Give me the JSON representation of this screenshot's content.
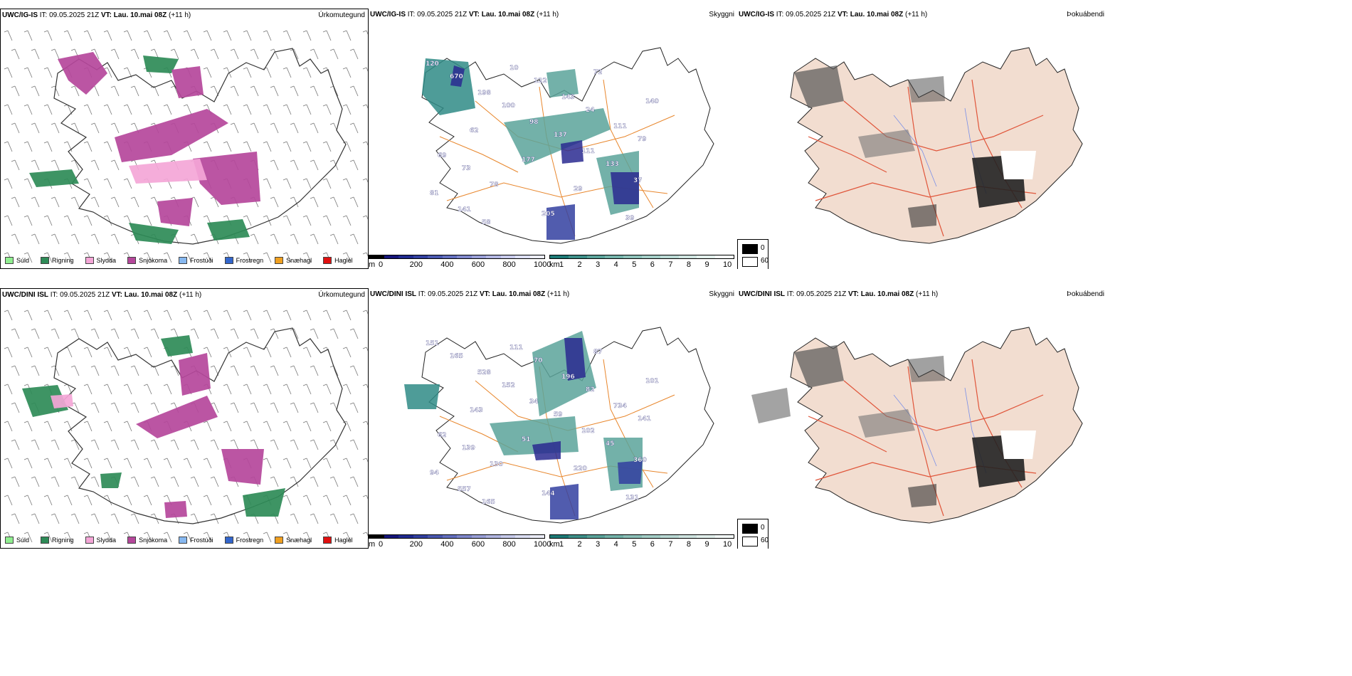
{
  "rows": [
    {
      "precip": {
        "header": {
          "model": "UWC/IG-IS",
          "it_label": "IT:",
          "it_value": "09.05.2025 21Z",
          "vt_label": "VT:",
          "vt_value": "Lau. 10.mai 08Z",
          "lead": "(+11 h)"
        },
        "title": "Úrkomutegund"
      },
      "cloud": {
        "header": {
          "model": "UWC/IG-IS",
          "it_label": "IT:",
          "it_value": "09.05.2025 21Z",
          "vt_label": "VT:",
          "vt_value": "Lau. 10.mai 08Z",
          "lead": "(+11 h)"
        },
        "title": "Skyggni",
        "labels": [
          "120",
          "198",
          "98",
          "111",
          "37",
          "141",
          "10",
          "143",
          "111",
          "69",
          "78",
          "205",
          "72",
          "140",
          "62",
          "177",
          "29",
          "39",
          "670",
          "100",
          "137",
          "133",
          "81",
          "58",
          "122",
          "24",
          "79",
          "73"
        ]
      },
      "fog": {
        "header": {
          "model": "UWC/IG-IS",
          "it_label": "IT:",
          "it_value": "09.05.2025 21Z",
          "vt_label": "VT:",
          "vt_value": "Lau. 10.mai 08Z",
          "lead": "(+11 h)"
        },
        "title": "Þokuábendi"
      }
    },
    {
      "precip": {
        "header": {
          "model": "UWC/DINI ISL",
          "it_label": "IT:",
          "it_value": "09.05.2025 21Z",
          "vt_label": "VT:",
          "vt_value": "Lau. 10.mai 08Z",
          "lead": "(+11 h)"
        },
        "title": "Úrkomutegund"
      },
      "cloud": {
        "header": {
          "model": "UWC/DINI ISL",
          "it_label": "IT:",
          "it_value": "09.05.2025 21Z",
          "vt_label": "VT:",
          "vt_value": "Lau. 10.mai 08Z",
          "lead": "(+11 h)"
        },
        "title": "Skyggni",
        "labels": [
          "151",
          "528",
          "34",
          "102",
          "360",
          "557",
          "111",
          "196",
          "734",
          "62",
          "130",
          "144",
          "87",
          "101",
          "143",
          "51",
          "220",
          "131",
          "165",
          "152",
          "59",
          "45",
          "94",
          "165",
          "70",
          "82",
          "141",
          "139"
        ]
      },
      "fog": {
        "header": {
          "model": "UWC/DINI ISL",
          "it_label": "IT:",
          "it_value": "09.05.2025 21Z",
          "vt_label": "VT:",
          "vt_value": "Lau. 10.mai 08Z",
          "lead": "(+11 h)"
        },
        "title": "Þokuábendi"
      }
    }
  ],
  "precip_legend": [
    {
      "label": "Súld",
      "color": "#90ee90"
    },
    {
      "label": "Rigning",
      "color": "#2e8b57"
    },
    {
      "label": "Slydda",
      "color": "#f4a6d7"
    },
    {
      "label": "Snjókoma",
      "color": "#b5479b"
    },
    {
      "label": "Frostúði",
      "color": "#87b8f0"
    },
    {
      "label": "Frostregn",
      "color": "#3366cc"
    },
    {
      "label": "Snæhagl",
      "color": "#f0a020"
    },
    {
      "label": "Haglél",
      "color": "#e01010"
    }
  ],
  "cloud_base_bar": {
    "unit": "m",
    "ticks": [
      "0",
      "200",
      "400",
      "600",
      "800",
      "1000"
    ],
    "colors": [
      "#000000",
      "#15157a",
      "#1f2a8f",
      "#3240a0",
      "#4a58b0",
      "#6470c0",
      "#8088cc",
      "#9aa0d8",
      "#b2b6e2",
      "#c8cbec",
      "#dcdff4",
      "#ecedf8"
    ]
  },
  "visibility_bar": {
    "unit": "km",
    "ticks": [
      "1",
      "2",
      "3",
      "4",
      "5",
      "6",
      "7",
      "8",
      "9",
      "10"
    ],
    "colors": [
      "#1d7a76",
      "#3d8f88",
      "#5aa39a",
      "#74b3aa",
      "#8dc1b9",
      "#a4cec7",
      "#bad9d4",
      "#cfe4e0",
      "#e2efec",
      "#f3f8f7"
    ]
  },
  "fog_legend": {
    "top": "0",
    "bottom": "60"
  }
}
